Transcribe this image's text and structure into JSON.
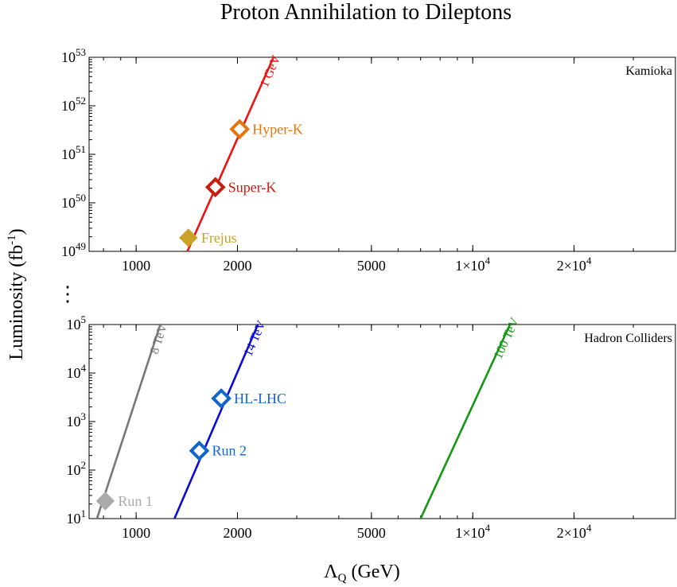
{
  "title": "Proton Annihilation to Dileptons",
  "ylabel": "Luminosity (fb",
  "ylabel_sup": "-1",
  "ylabel_end": ")",
  "xlabel_main": "Λ",
  "xlabel_sub": "Q",
  "xlabel_end": " (GeV)",
  "ellipsis": "⋮",
  "colors": {
    "frame": "#000000",
    "1gev": "#ee1111",
    "8tev": "#777777",
    "14tev": "#0a0ad6",
    "100tev": "#119911",
    "frejus": "#c9a227",
    "superk": "#c41e10",
    "hyperk": "#e07810",
    "run1": "#aaaaaa",
    "run2": "#1166cc",
    "hllhc": "#1166cc"
  },
  "chart_data": [
    {
      "id": "kamioka",
      "type": "line",
      "panel_label": "Kamioka",
      "xscale": "log",
      "yscale": "log",
      "xlim": [
        725,
        40000
      ],
      "ylim": [
        1e+49,
        1e+53
      ],
      "x_ticks": [
        {
          "value": 1000,
          "label": "1000"
        },
        {
          "value": 2000,
          "label": "2000"
        },
        {
          "value": 5000,
          "label": "5000"
        },
        {
          "value": 10000,
          "label": "1×10",
          "sup": "4"
        },
        {
          "value": 20000,
          "label": "2×10",
          "sup": "4"
        }
      ],
      "y_ticks": [
        {
          "value": 1e+49,
          "label": "10",
          "sup": "49"
        },
        {
          "value": 1e+50,
          "label": "10",
          "sup": "50"
        },
        {
          "value": 1e+51,
          "label": "10",
          "sup": "51"
        },
        {
          "value": 1e+52,
          "label": "10",
          "sup": "52"
        },
        {
          "value": 1e+53,
          "label": "10",
          "sup": "53"
        }
      ],
      "series": [
        {
          "name": "1 GeV",
          "color_key": "1gev",
          "points": [
            [
              1420,
              1e+49
            ],
            [
              2560,
              1e+53
            ]
          ]
        }
      ],
      "markers": [
        {
          "name": "Frejus",
          "x": 1430,
          "y": 1.9e+49,
          "filled": true,
          "color_key": "frejus"
        },
        {
          "name": "Super-K",
          "x": 1720,
          "y": 2.1e+50,
          "filled": false,
          "color_key": "superk"
        },
        {
          "name": "Hyper-K",
          "x": 2030,
          "y": 3.3e+51,
          "filled": false,
          "color_key": "hyperk"
        }
      ]
    },
    {
      "id": "hadron",
      "type": "line",
      "panel_label": "Hadron Colliders",
      "xscale": "log",
      "yscale": "log",
      "xlim": [
        725,
        40000
      ],
      "ylim": [
        10,
        100000.0
      ],
      "x_ticks": [
        {
          "value": 1000,
          "label": "1000"
        },
        {
          "value": 2000,
          "label": "2000"
        },
        {
          "value": 5000,
          "label": "5000"
        },
        {
          "value": 10000,
          "label": "1×10",
          "sup": "4"
        },
        {
          "value": 20000,
          "label": "2×10",
          "sup": "4"
        }
      ],
      "y_ticks": [
        {
          "value": 10,
          "label": "10",
          "sup": "1"
        },
        {
          "value": 100,
          "label": "10",
          "sup": "2"
        },
        {
          "value": 1000,
          "label": "10",
          "sup": "3"
        },
        {
          "value": 10000,
          "label": "10",
          "sup": "4"
        },
        {
          "value": 100000,
          "label": "10",
          "sup": "5"
        }
      ],
      "series": [
        {
          "name": "8 TeV",
          "color_key": "8tev",
          "points": [
            [
              765,
              10
            ],
            [
              1180,
              100000.0
            ]
          ]
        },
        {
          "name": "14 TeV",
          "color_key": "14tev",
          "points": [
            [
              1300,
              10
            ],
            [
              2300,
              100000.0
            ]
          ]
        },
        {
          "name": "100 TeV",
          "color_key": "100tev",
          "points": [
            [
              7000,
              10
            ],
            [
              12900,
              100000.0
            ]
          ]
        }
      ],
      "markers": [
        {
          "name": "Run 1",
          "x": 810,
          "y": 23,
          "filled": true,
          "color_key": "run1"
        },
        {
          "name": "Run 2",
          "x": 1540,
          "y": 250,
          "filled": false,
          "color_key": "run2"
        },
        {
          "name": "HL-LHC",
          "x": 1790,
          "y": 3000,
          "filled": false,
          "color_key": "hllhc"
        }
      ]
    }
  ]
}
